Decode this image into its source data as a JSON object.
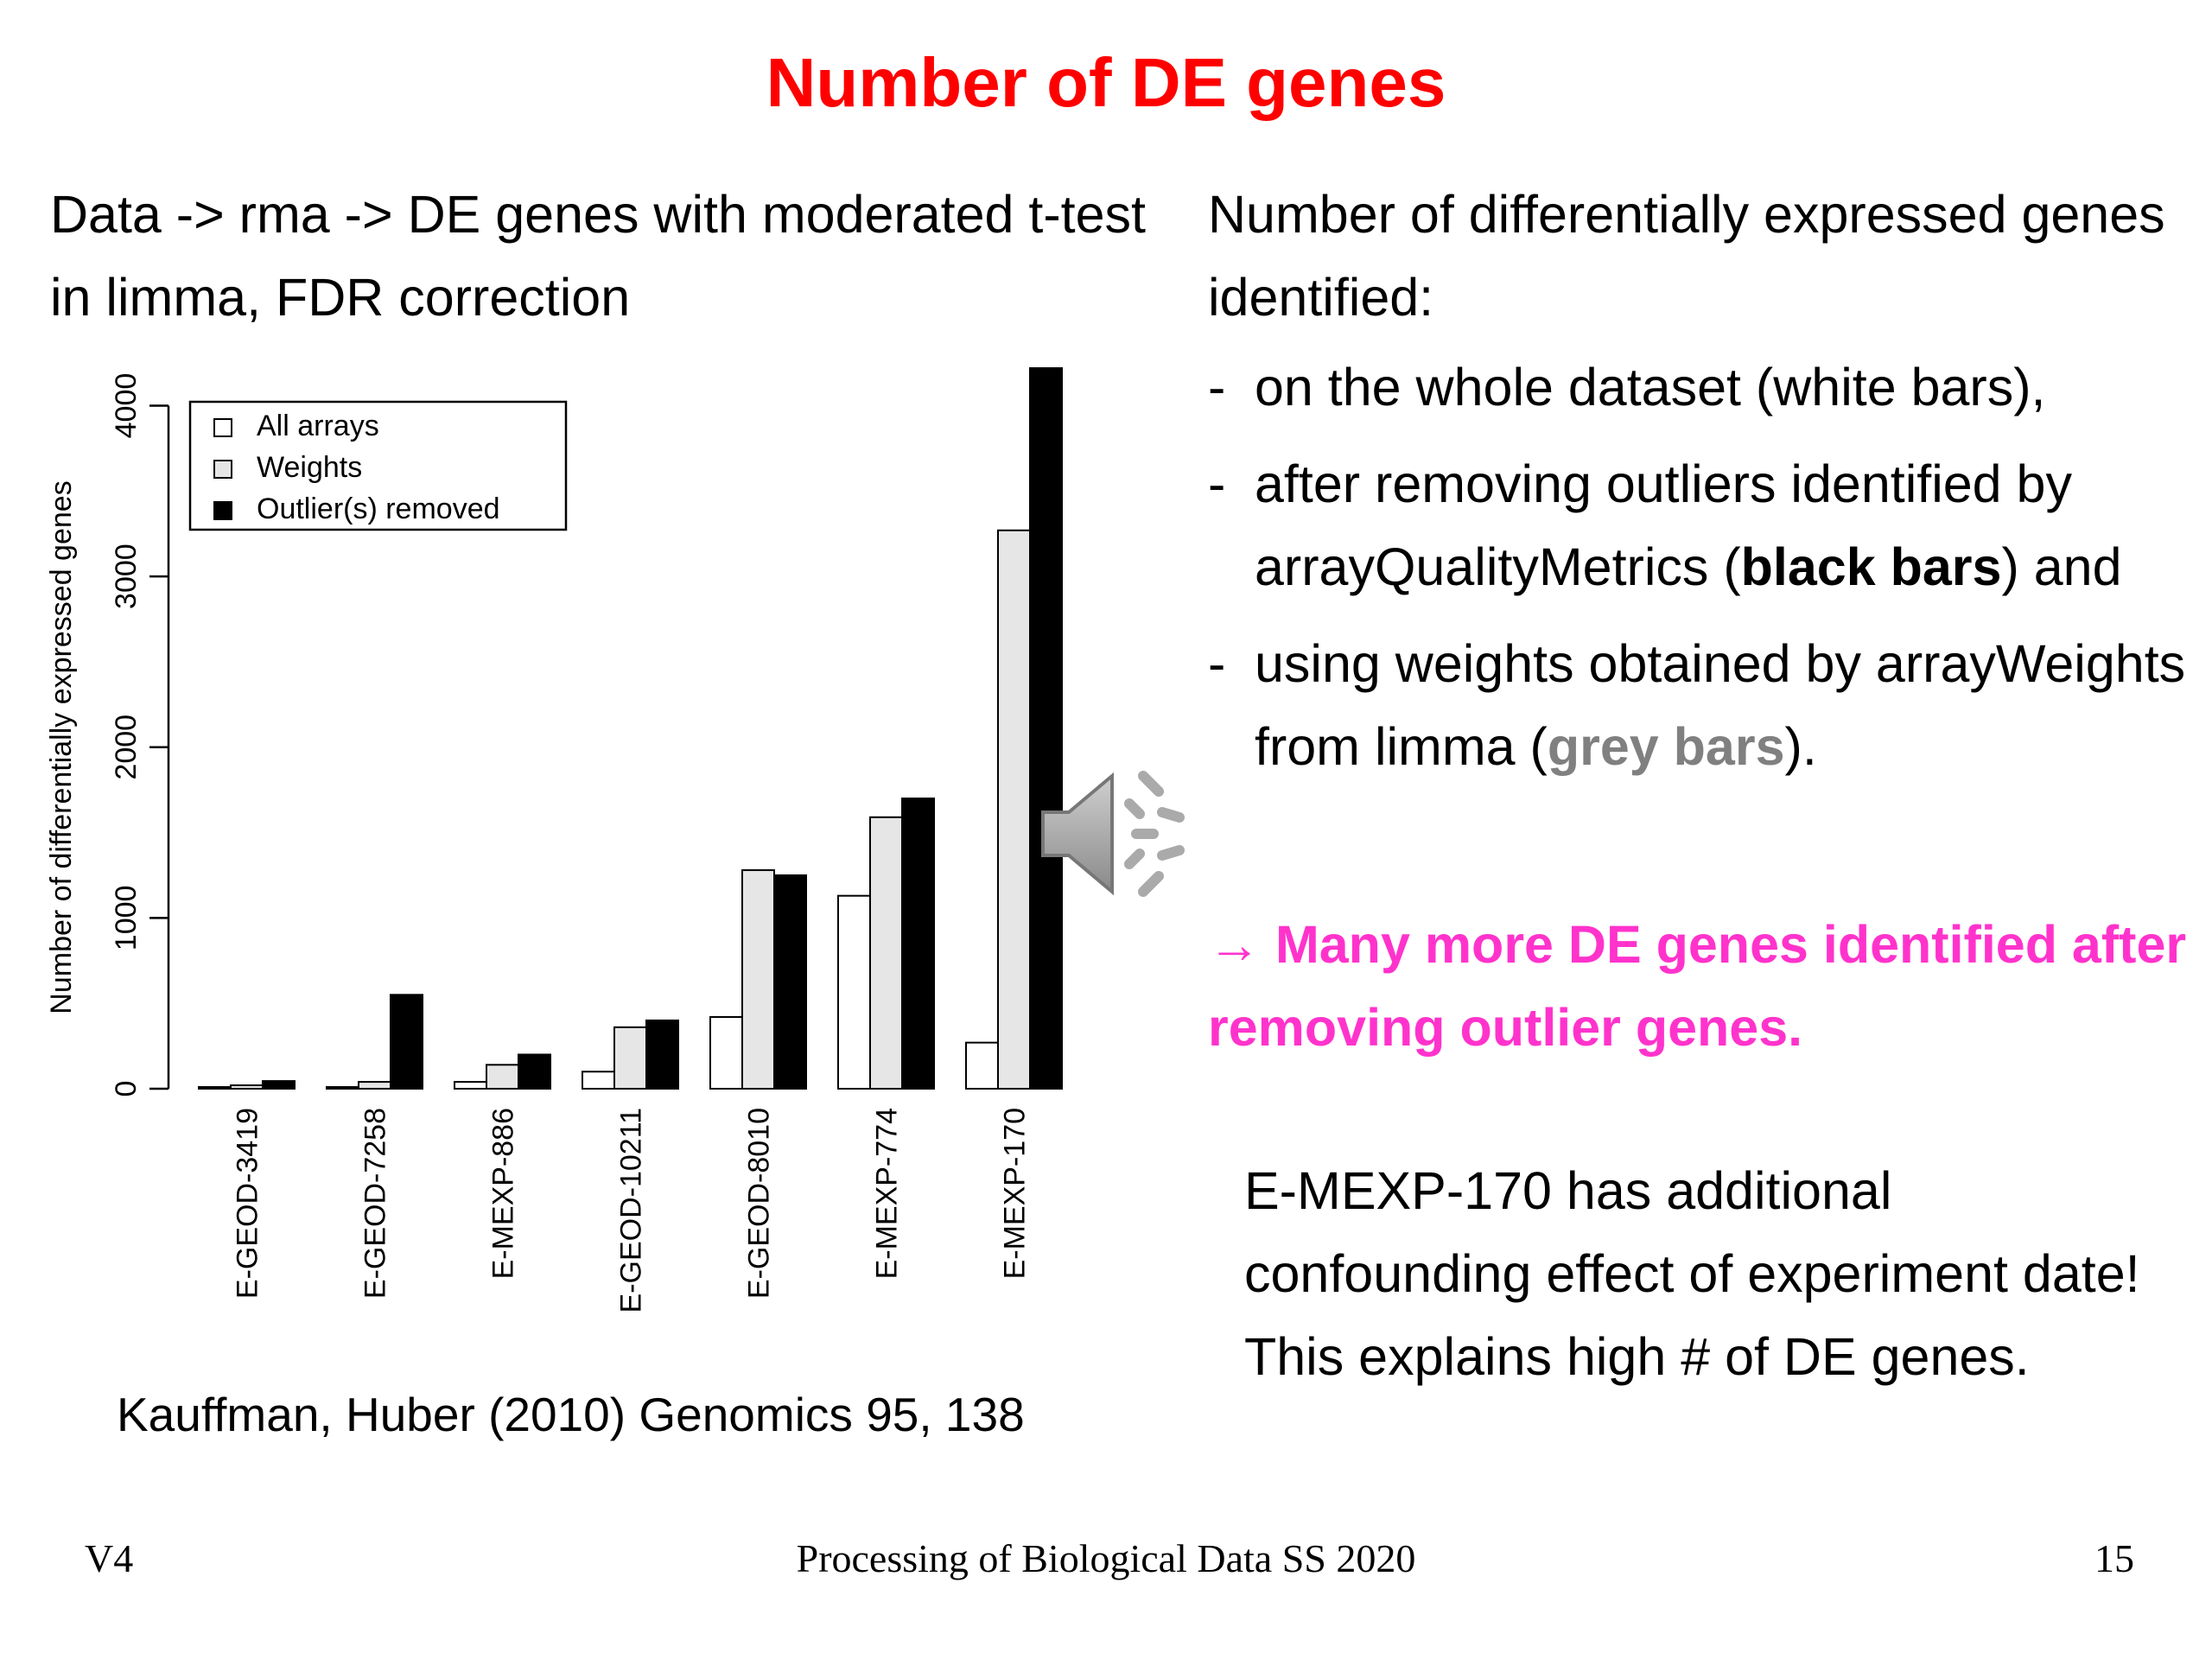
{
  "slide": {
    "title": "Number of DE genes",
    "intro": "Data -> rma -> DE genes with moderated t-test in limma, FDR correction",
    "right_heading": "Number of differentially expressed genes identified:",
    "bullets": [
      {
        "dash": "-",
        "text": "on the whole dataset (white bars),"
      },
      {
        "dash": "-",
        "pre": "after removing outliers identified by arrayQualityMetrics (",
        "bold": "black bars",
        "post": ") and"
      },
      {
        "dash": "-",
        "pre": "using weights obtained by arrayWeights from limma (",
        "grey": "grey bars",
        "post": ")."
      }
    ],
    "conclusion": "→ Many more DE genes identified after removing outlier genes.",
    "note": "E-MEXP-170  has additional confounding effect of experiment date! This explains high # of DE genes.",
    "citation": "Kauffman, Huber (2010) Genomics 95, 138",
    "footer": {
      "left": "V4",
      "center": "Processing of Biological Data SS 2020",
      "right": "15"
    },
    "speaker_icon": "speaker-volume-icon"
  },
  "chart_data": {
    "type": "bar",
    "ylabel": "Number of differentially expressed genes",
    "ylim": [
      0,
      4200
    ],
    "yticks": [
      0,
      1000,
      2000,
      3000,
      4000
    ],
    "categories": [
      "E-GEOD-3419",
      "E-GEOD-7258",
      "E-MEXP-886",
      "E-GEOD-10211",
      "E-GEOD-8010",
      "E-MEXP-774",
      "E-MEXP-170"
    ],
    "series": [
      {
        "name": "All arrays",
        "color": "#ffffff",
        "values": [
          10,
          10,
          40,
          100,
          420,
          1130,
          270
        ]
      },
      {
        "name": "Weights",
        "color": "#e6e6e6",
        "values": [
          20,
          40,
          140,
          360,
          1280,
          1590,
          3270
        ]
      },
      {
        "name": "Outlier(s) removed",
        "color": "#000000",
        "values": [
          45,
          550,
          200,
          400,
          1250,
          1700,
          4220
        ]
      }
    ],
    "legend_position": "top-left",
    "grid": false
  }
}
